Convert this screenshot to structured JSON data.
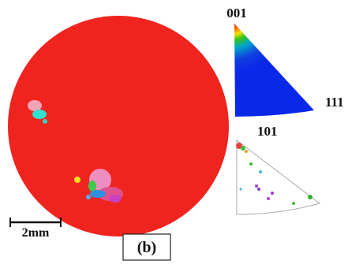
{
  "map": {
    "scale_bar": "2mm",
    "panel_label": "(b)"
  },
  "pole_figure": {
    "top": "001",
    "right": "111"
  },
  "lower_figure": {
    "label": "101"
  }
}
